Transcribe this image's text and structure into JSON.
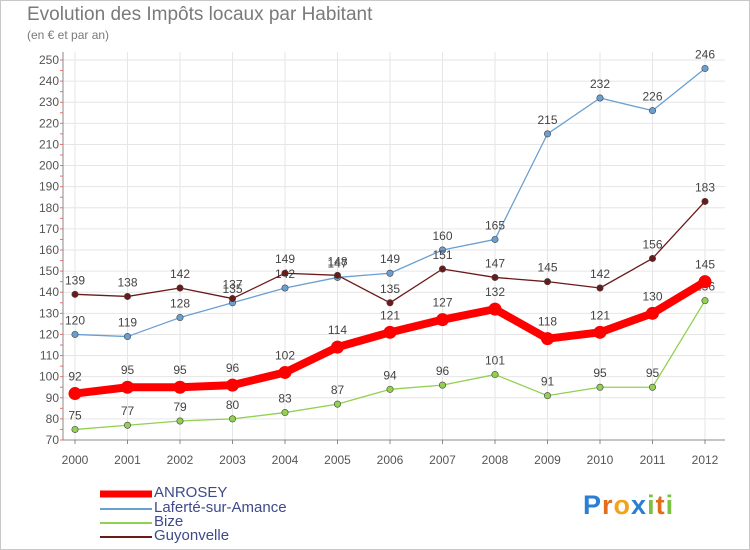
{
  "chart_data": {
    "type": "line",
    "title": "Evolution des Impôts locaux par Habitant",
    "subtitle": "(en € et par an)",
    "x": [
      "2000",
      "2001",
      "2002",
      "2003",
      "2004",
      "2005",
      "2006",
      "2007",
      "2008",
      "2009",
      "2010",
      "2011",
      "2012"
    ],
    "ylim": [
      70,
      250
    ],
    "yticks": [
      70,
      80,
      90,
      100,
      110,
      120,
      130,
      140,
      150,
      160,
      170,
      180,
      190,
      200,
      210,
      220,
      230,
      240,
      250
    ],
    "grid": true,
    "legend_placement": "bottom-left",
    "series": [
      {
        "name": "Laferté-sur-Amance",
        "color": "#6a9fd1",
        "values": [
          120,
          119,
          128,
          135,
          142,
          147,
          149,
          160,
          165,
          215,
          232,
          226,
          246
        ]
      },
      {
        "name": "Bize",
        "color": "#92d050",
        "values": [
          75,
          77,
          79,
          80,
          83,
          87,
          94,
          96,
          101,
          91,
          95,
          95,
          136
        ]
      },
      {
        "name": "Guyonvelle",
        "color": "#6b1a1a",
        "values": [
          139,
          138,
          142,
          137,
          149,
          148,
          135,
          151,
          147,
          145,
          142,
          156,
          183
        ]
      },
      {
        "name": "ANROSEY",
        "color": "#ff0000",
        "values": [
          92,
          95,
          95,
          96,
          102,
          114,
          121,
          127,
          132,
          118,
          121,
          130,
          145
        ]
      }
    ],
    "legend": [
      "ANROSEY",
      "Laferté-sur-Amance",
      "Bize",
      "Guyonvelle"
    ]
  },
  "logo": {
    "letters": [
      "P",
      "r",
      "o",
      "x",
      "i",
      "t",
      "i"
    ],
    "colors": [
      "#2a7fd4",
      "#e36d1c",
      "#f2a31b",
      "#2a7fd4",
      "#7cc242",
      "#e36d1c",
      "#7cc242"
    ]
  }
}
